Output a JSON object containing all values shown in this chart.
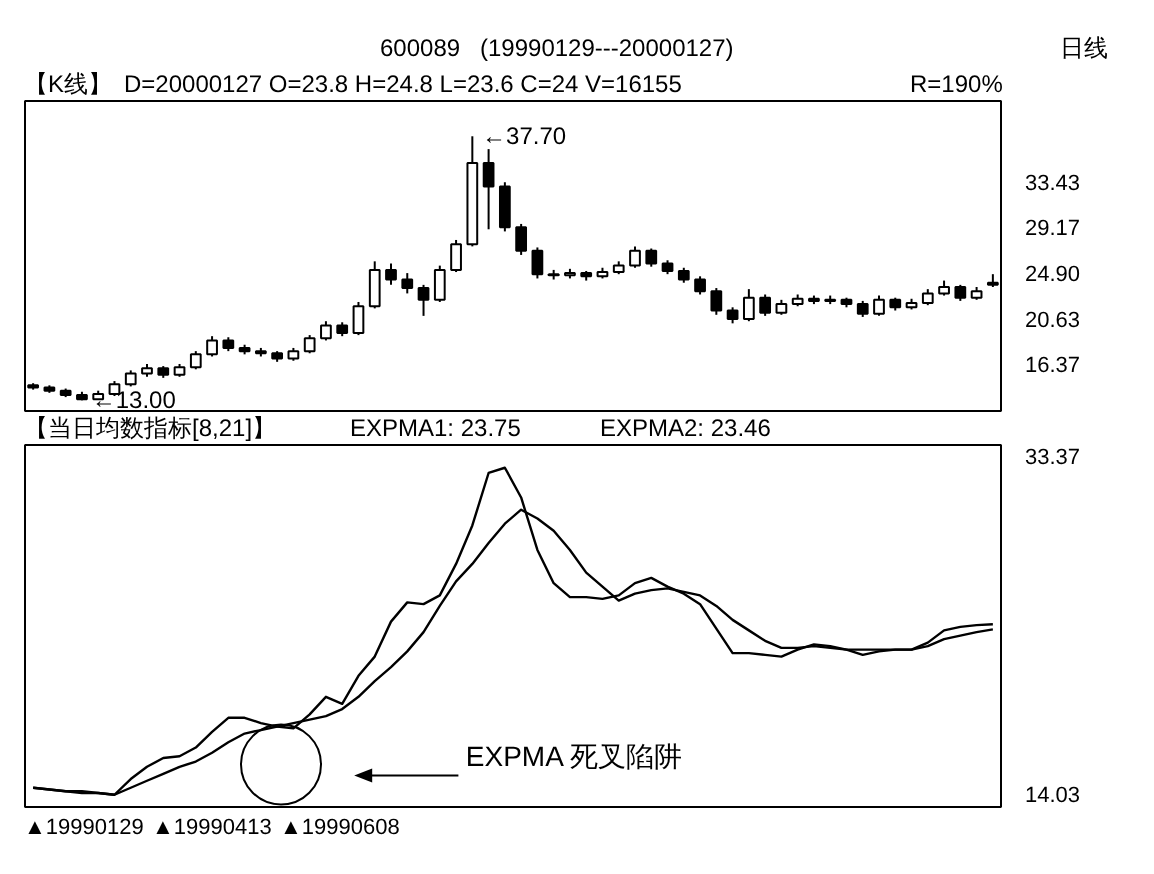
{
  "chart_data": [
    {
      "type": "candlestick",
      "color": "#000000",
      "categories": [
        null,
        null,
        null,
        null,
        null,
        null,
        null,
        null,
        null,
        null,
        null,
        null,
        null,
        null,
        null,
        null,
        null,
        null,
        null,
        null,
        null,
        null,
        null,
        null,
        null,
        null,
        null,
        null,
        null,
        null,
        null,
        null,
        null,
        null,
        null,
        null,
        null,
        null,
        null,
        null,
        null,
        null,
        null,
        null,
        null,
        null,
        null,
        null,
        null,
        null,
        null,
        null,
        null,
        null,
        null,
        null,
        null,
        null,
        null,
        null
      ],
      "ohlc": [
        [
          14.4,
          14.6,
          14.0,
          14.2
        ],
        [
          14.2,
          14.4,
          13.7,
          13.9
        ],
        [
          13.9,
          14.1,
          13.3,
          13.5
        ],
        [
          13.5,
          13.8,
          13.0,
          13.1
        ],
        [
          13.1,
          13.9,
          13.1,
          13.6
        ],
        [
          13.6,
          14.8,
          13.4,
          14.5
        ],
        [
          14.5,
          15.8,
          14.3,
          15.5
        ],
        [
          15.5,
          16.4,
          15.2,
          16.0
        ],
        [
          16.0,
          16.2,
          15.1,
          15.4
        ],
        [
          15.4,
          16.4,
          15.2,
          16.1
        ],
        [
          16.1,
          17.6,
          15.9,
          17.3
        ],
        [
          17.3,
          19.0,
          17.1,
          18.6
        ],
        [
          18.6,
          18.9,
          17.6,
          17.9
        ],
        [
          17.9,
          18.2,
          17.3,
          17.6
        ],
        [
          17.6,
          17.9,
          17.1,
          17.4
        ],
        [
          17.4,
          17.6,
          16.6,
          16.9
        ],
        [
          16.9,
          17.9,
          16.7,
          17.6
        ],
        [
          17.6,
          19.1,
          17.4,
          18.8
        ],
        [
          18.8,
          20.4,
          18.6,
          20.0
        ],
        [
          20.0,
          20.3,
          19.0,
          19.3
        ],
        [
          19.3,
          22.2,
          19.1,
          21.8
        ],
        [
          21.8,
          26.0,
          21.6,
          25.2
        ],
        [
          25.2,
          25.8,
          23.8,
          24.3
        ],
        [
          24.3,
          24.9,
          23.0,
          23.5
        ],
        [
          23.5,
          23.8,
          20.9,
          22.4
        ],
        [
          22.4,
          25.6,
          22.2,
          25.2
        ],
        [
          25.2,
          28.0,
          25.0,
          27.6
        ],
        [
          27.6,
          37.7,
          27.4,
          35.2
        ],
        [
          35.2,
          36.5,
          29.0,
          33.0
        ],
        [
          33.0,
          33.4,
          28.8,
          29.2
        ],
        [
          29.2,
          29.5,
          26.6,
          27.0
        ],
        [
          27.0,
          27.3,
          24.4,
          24.8
        ],
        [
          24.8,
          25.2,
          24.3,
          24.7
        ],
        [
          24.7,
          25.3,
          24.4,
          24.9
        ],
        [
          24.9,
          25.1,
          24.2,
          24.6
        ],
        [
          24.6,
          25.4,
          24.4,
          25.0
        ],
        [
          25.0,
          26.0,
          24.8,
          25.6
        ],
        [
          25.6,
          27.4,
          25.4,
          27.0
        ],
        [
          27.0,
          27.2,
          25.5,
          25.8
        ],
        [
          25.8,
          26.1,
          24.8,
          25.1
        ],
        [
          25.1,
          25.4,
          24.0,
          24.3
        ],
        [
          24.3,
          24.6,
          22.9,
          23.2
        ],
        [
          23.2,
          23.5,
          21.0,
          21.4
        ],
        [
          21.4,
          21.7,
          20.2,
          20.6
        ],
        [
          20.6,
          23.4,
          20.4,
          22.6
        ],
        [
          22.6,
          22.9,
          20.9,
          21.2
        ],
        [
          21.2,
          22.4,
          21.0,
          22.0
        ],
        [
          22.0,
          22.9,
          21.8,
          22.5
        ],
        [
          22.5,
          22.8,
          22.0,
          22.3
        ],
        [
          22.3,
          22.8,
          22.0,
          22.4
        ],
        [
          22.4,
          22.6,
          21.7,
          22.0
        ],
        [
          22.0,
          22.3,
          20.8,
          21.1
        ],
        [
          21.1,
          22.8,
          20.9,
          22.4
        ],
        [
          22.4,
          22.6,
          21.4,
          21.7
        ],
        [
          21.7,
          22.5,
          21.5,
          22.1
        ],
        [
          22.1,
          23.4,
          21.9,
          23.0
        ],
        [
          23.0,
          24.2,
          22.8,
          23.6
        ],
        [
          23.6,
          23.8,
          22.3,
          22.6
        ],
        [
          22.6,
          23.6,
          22.4,
          23.2
        ],
        [
          23.8,
          24.8,
          23.6,
          24.0
        ]
      ],
      "ylim": [
        12,
        41
      ],
      "yticks": [
        {
          "value": 16.37,
          "label": "16.37"
        },
        {
          "value": 20.63,
          "label": "20.63"
        },
        {
          "value": 24.9,
          "label": "24.90"
        },
        {
          "value": 29.17,
          "label": "29.17"
        },
        {
          "value": 33.43,
          "label": "33.43"
        }
      ],
      "tick_labels": "y",
      "annotations": [
        "600089",
        "(19990129---20000127)",
        "日线",
        "【K线】",
        "D=20000127 O=23.8 H=24.8 L=23.6 C=24 V=16155",
        "R=190%",
        "←37.70",
        "←13.00"
      ]
    },
    {
      "type": "line",
      "categories": [
        null,
        null,
        null,
        null,
        null,
        null,
        null,
        null,
        null,
        null,
        null,
        null,
        null,
        null,
        null,
        null,
        null,
        null,
        null,
        null,
        null,
        null,
        null,
        null,
        null,
        null,
        null,
        null,
        null,
        null,
        null,
        null,
        null,
        null,
        null,
        null,
        null,
        null,
        null,
        null,
        null,
        null,
        null,
        null,
        null,
        null,
        null,
        null,
        null,
        null,
        null,
        null,
        null,
        null,
        null,
        null,
        null,
        null,
        null,
        null
      ],
      "series": [
        {
          "color": "#000000",
          "values": [
            14.4,
            14.3,
            14.2,
            14.2,
            14.1,
            14.0,
            14.9,
            15.6,
            16.1,
            16.2,
            16.7,
            17.6,
            18.4,
            18.4,
            18.1,
            17.9,
            17.8,
            18.6,
            19.6,
            19.2,
            20.8,
            21.9,
            23.9,
            25.0,
            24.9,
            25.4,
            27.2,
            29.4,
            32.4,
            32.7,
            31.0,
            28.0,
            26.1,
            25.3,
            25.3,
            25.2,
            25.4,
            26.1,
            26.4,
            25.9,
            25.5,
            24.9,
            23.5,
            22.1,
            22.1,
            22.0,
            21.9,
            22.3,
            22.6,
            22.5,
            22.3,
            22.0,
            22.2,
            22.3,
            22.3,
            22.7,
            23.4,
            23.6,
            23.7,
            23.75
          ]
        },
        {
          "color": "#000000",
          "values": [
            14.4,
            14.3,
            14.2,
            14.1,
            14.1,
            14.0,
            14.4,
            14.8,
            15.2,
            15.6,
            15.9,
            16.4,
            17.0,
            17.5,
            17.7,
            17.9,
            18.1,
            18.3,
            18.5,
            18.9,
            19.6,
            20.5,
            21.3,
            22.2,
            23.3,
            24.8,
            26.2,
            27.2,
            28.4,
            29.5,
            30.3,
            29.8,
            29.1,
            28.0,
            26.7,
            25.9,
            25.1,
            25.5,
            25.7,
            25.8,
            25.6,
            25.4,
            24.8,
            24.0,
            23.4,
            22.8,
            22.4,
            22.4,
            22.5,
            22.4,
            22.3,
            22.3,
            22.3,
            22.3,
            22.3,
            22.5,
            22.9,
            23.1,
            23.3,
            23.46
          ]
        }
      ],
      "ylim": [
        13.3,
        34.0
      ],
      "yticks": [
        14.03,
        33.37
      ],
      "tick_labels": "y",
      "annotations": [
        "【当日均数指标[8,21]】",
        "EXPMA1: 23.75",
        "EXPMA2: 23.46",
        "EXPMA 死叉陷阱",
        "▲19990129",
        "▲19990413",
        "▲19990608"
      ]
    }
  ]
}
